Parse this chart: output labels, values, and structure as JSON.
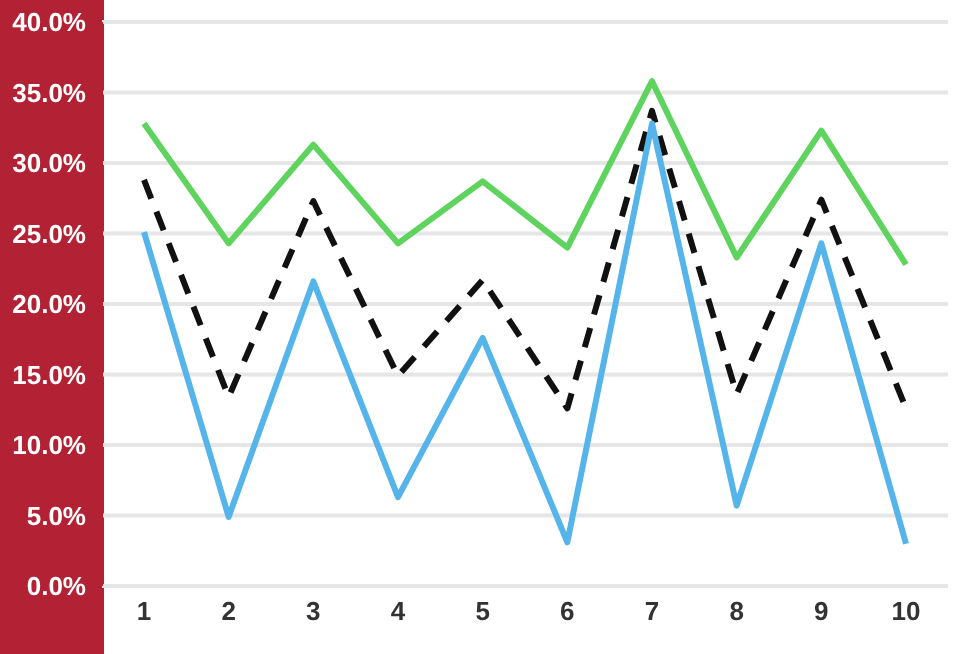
{
  "chart_data": {
    "type": "line",
    "categories": [
      "1",
      "2",
      "3",
      "4",
      "5",
      "6",
      "7",
      "8",
      "9",
      "10"
    ],
    "series": [
      {
        "color": "#5ed35e",
        "line_style": "solid",
        "values": [
          32.8,
          24.3,
          31.3,
          24.3,
          28.7,
          24.0,
          35.8,
          23.3,
          32.3,
          22.8
        ]
      },
      {
        "color": "#111111",
        "line_style": "dashed",
        "values": [
          28.8,
          13.4,
          27.3,
          14.9,
          21.7,
          12.6,
          33.7,
          13.6,
          27.4,
          12.6
        ]
      },
      {
        "color": "#55b4ea",
        "line_style": "solid",
        "values": [
          25.1,
          4.9,
          21.6,
          6.3,
          17.6,
          3.1,
          32.8,
          5.7,
          24.3,
          3.0
        ]
      }
    ],
    "ylim": [
      0,
      40
    ],
    "yticks": [
      {
        "value": 0,
        "label": "0.0%"
      },
      {
        "value": 5,
        "label": "5.0%"
      },
      {
        "value": 10,
        "label": "10.0%"
      },
      {
        "value": 15,
        "label": "15.0%"
      },
      {
        "value": 20,
        "label": "20.0%"
      },
      {
        "value": 25,
        "label": "25.0%"
      },
      {
        "value": 30,
        "label": "30.0%"
      },
      {
        "value": 35,
        "label": "35.0%"
      },
      {
        "value": 40,
        "label": "40.0%"
      }
    ],
    "grid": "y",
    "legend": false,
    "marker": "none"
  }
}
